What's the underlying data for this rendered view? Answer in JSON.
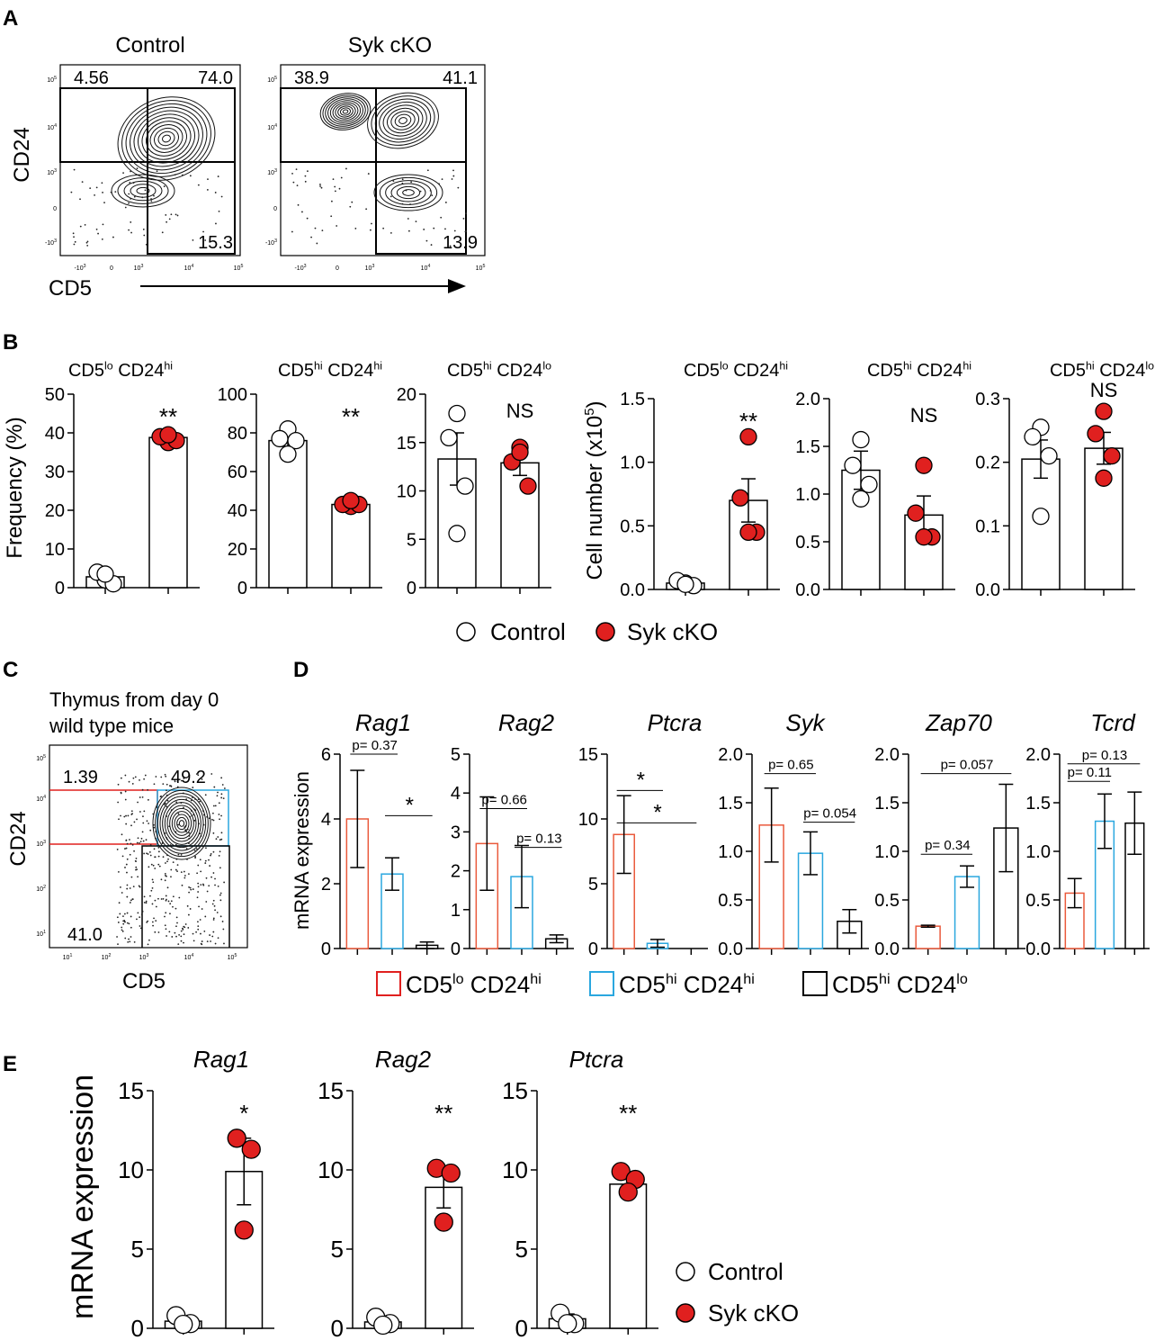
{
  "colors": {
    "red": "#e0201f",
    "blue": "#2aa7df",
    "orange": "#ea5a3c",
    "black": "#000000"
  },
  "panel_labels": [
    "A",
    "B",
    "C",
    "D",
    "E"
  ],
  "panel_a": {
    "xlabel": "CD5",
    "ylabel": "CD24",
    "plots": [
      {
        "title": "Control",
        "quadrants": {
          "ul": "4.56",
          "ur": "74.0",
          "lr": "15.3"
        }
      },
      {
        "title": "Syk cKO",
        "quadrants": {
          "ul": "38.9",
          "ur": "41.1",
          "lr": "13.9"
        }
      }
    ],
    "x_ticks": [
      "-10 3",
      "0",
      "10 3",
      "10 4",
      "10 5"
    ],
    "y_ticks": [
      "10 5",
      "10 4",
      "10 3",
      "0",
      "-10 3"
    ]
  },
  "panel_c": {
    "title_lines": [
      "Thymus from day 0",
      "wild type mice"
    ],
    "xlabel": "CD5",
    "ylabel": "CD24",
    "gates": {
      "a": "1.39",
      "b": "49.2",
      "c": "41.0"
    },
    "x_ticks": [
      "10 1",
      "10 2",
      "10 3",
      "10 4",
      "10 5"
    ],
    "y_ticks": [
      "10 5",
      "10 4",
      "10 3",
      "10 2",
      "10 1"
    ]
  },
  "legend_b": {
    "control": "Control",
    "cko": "Syk cKO"
  },
  "legend_d": [
    "CD5lo CD24hi",
    "CD5hi CD24hi",
    "CD5hi CD24lo"
  ],
  "legend_e": {
    "control": "Control",
    "cko": "Syk cKO"
  },
  "chart_data": [
    {
      "id": "B1",
      "type": "bar",
      "title": "CD5lo CD24hi",
      "ylabel": "Frequency (%)",
      "ylim": [
        0,
        50
      ],
      "yticks": [
        "0",
        "10",
        "20",
        "30",
        "40",
        "50"
      ],
      "categories": [
        "Control",
        "Syk cKO"
      ],
      "values": [
        2.8,
        38.8
      ],
      "errors": [
        0.8,
        0.7
      ],
      "points": [
        [
          2,
          4,
          1,
          3.5
        ],
        [
          37.5,
          39,
          38,
          39.5
        ]
      ],
      "sig": "**"
    },
    {
      "id": "B2",
      "type": "bar",
      "title": "CD5hi CD24hi",
      "ylim": [
        0,
        100
      ],
      "yticks": [
        "0",
        "20",
        "40",
        "60",
        "80",
        "100"
      ],
      "categories": [
        "Control",
        "Syk cKO"
      ],
      "values": [
        76,
        43
      ],
      "errors": [
        3,
        1
      ],
      "points": [
        [
          82,
          77,
          76,
          69
        ],
        [
          42,
          43,
          43,
          45
        ]
      ],
      "sig": "**"
    },
    {
      "id": "B3",
      "type": "bar",
      "title": "CD5hi CD24lo",
      "ylim": [
        0,
        20
      ],
      "yticks": [
        "0",
        "5",
        "10",
        "15",
        "20"
      ],
      "categories": [
        "Control",
        "Syk cKO"
      ],
      "values": [
        13.3,
        12.9
      ],
      "errors": [
        2.7,
        1.3
      ],
      "points": [
        [
          18,
          15.5,
          10.5,
          5.6
        ],
        [
          14.5,
          13,
          10.5,
          14
        ]
      ],
      "sig": "NS"
    },
    {
      "id": "B4",
      "type": "bar",
      "title": "CD5lo CD24hi",
      "ylabel": "Cell number (x105)",
      "ylim": [
        0,
        1.5
      ],
      "yticks": [
        "0.0",
        "0.5",
        "1.0",
        "1.5"
      ],
      "categories": [
        "Control",
        "Syk cKO"
      ],
      "values": [
        0.05,
        0.7
      ],
      "errors": [
        0.02,
        0.17
      ],
      "points": [
        [
          0.05,
          0.07,
          0.03,
          0.04
        ],
        [
          1.2,
          0.72,
          0.45,
          0.45
        ]
      ],
      "sig": "**"
    },
    {
      "id": "B5",
      "type": "bar",
      "title": "CD5hi CD24hi",
      "ylim": [
        0,
        2.0
      ],
      "yticks": [
        "0.0",
        "0.5",
        "1.0",
        "1.5",
        "2.0"
      ],
      "categories": [
        "Control",
        "Syk cKO"
      ],
      "values": [
        1.25,
        0.78
      ],
      "errors": [
        0.2,
        0.2
      ],
      "points": [
        [
          1.57,
          1.3,
          1.1,
          0.95
        ],
        [
          1.3,
          0.8,
          0.55,
          0.55
        ]
      ],
      "sig": "NS"
    },
    {
      "id": "B6",
      "type": "bar",
      "title": "CD5hi CD24lo",
      "ylim": [
        0,
        0.3
      ],
      "yticks": [
        "0.0",
        "0.1",
        "0.2",
        "0.3"
      ],
      "categories": [
        "Control",
        "Syk cKO"
      ],
      "values": [
        0.205,
        0.222
      ],
      "errors": [
        0.03,
        0.025
      ],
      "points": [
        [
          0.255,
          0.24,
          0.21,
          0.115
        ],
        [
          0.28,
          0.245,
          0.21,
          0.175
        ]
      ],
      "sig": "NS"
    },
    {
      "id": "D1",
      "type": "bar",
      "title": "Rag1",
      "ylabel": "mRNA expression",
      "ylim": [
        0,
        6
      ],
      "yticks": [
        "0",
        "2",
        "4",
        "6"
      ],
      "categories": [
        "CD5lo CD24hi",
        "CD5hi CD24hi",
        "CD5hi CD24lo"
      ],
      "values": [
        4.0,
        2.3,
        0.1
      ],
      "errors": [
        1.5,
        0.5,
        0.1
      ],
      "annotations": [
        {
          "text": "p= 0.37",
          "from": 0,
          "to": 1,
          "y": 6.0
        },
        {
          "text": "*",
          "from": 1,
          "to": 2,
          "y": 4.1
        }
      ]
    },
    {
      "id": "D2",
      "type": "bar",
      "title": "Rag2",
      "ylim": [
        0,
        5
      ],
      "yticks": [
        "0",
        "1",
        "2",
        "3",
        "4",
        "5"
      ],
      "categories": [
        "CD5lo CD24hi",
        "CD5hi CD24hi",
        "CD5hi CD24lo"
      ],
      "values": [
        2.7,
        1.85,
        0.25
      ],
      "errors": [
        1.2,
        0.8,
        0.1
      ],
      "annotations": [
        {
          "text": "p= 0.66",
          "from": 0,
          "to": 1,
          "y": 3.6
        },
        {
          "text": "p= 0.13",
          "from": 1,
          "to": 2,
          "y": 2.6
        }
      ]
    },
    {
      "id": "D3",
      "type": "bar",
      "title": "Ptcra",
      "ylim": [
        0,
        15
      ],
      "yticks": [
        "0",
        "5",
        "10",
        "15"
      ],
      "categories": [
        "CD5lo CD24hi",
        "CD5hi CD24hi",
        "CD5hi CD24lo"
      ],
      "values": [
        8.8,
        0.4,
        0
      ],
      "errors": [
        3.0,
        0.3,
        0
      ],
      "annotations": [
        {
          "text": "*",
          "from": 0,
          "to": 1,
          "y": 12.2
        },
        {
          "text": "*",
          "from": 0,
          "to": 2,
          "y": 9.7
        }
      ]
    },
    {
      "id": "D4",
      "type": "bar",
      "title": "Syk",
      "ylim": [
        0,
        2.0
      ],
      "yticks": [
        "0.0",
        "0.5",
        "1.0",
        "1.5",
        "2.0"
      ],
      "categories": [
        "CD5lo CD24hi",
        "CD5hi CD24hi",
        "CD5hi CD24lo"
      ],
      "values": [
        1.27,
        0.98,
        0.28
      ],
      "errors": [
        0.38,
        0.22,
        0.12
      ],
      "annotations": [
        {
          "text": "p= 0.65",
          "from": 0,
          "to": 1,
          "y": 1.8
        },
        {
          "text": "p= 0.054",
          "from": 1,
          "to": 2,
          "y": 1.3
        }
      ]
    },
    {
      "id": "D5",
      "type": "bar",
      "title": "Zap70",
      "ylim": [
        0,
        2.0
      ],
      "yticks": [
        "0.0",
        "0.5",
        "1.0",
        "1.5",
        "2.0"
      ],
      "categories": [
        "CD5lo CD24hi",
        "CD5hi CD24hi",
        "CD5hi CD24lo"
      ],
      "values": [
        0.23,
        0.74,
        1.24
      ],
      "errors": [
        0.01,
        0.11,
        0.45
      ],
      "annotations": [
        {
          "text": "p= 0.057",
          "from": 0,
          "to": 2,
          "y": 1.8
        },
        {
          "text": "p= 0.34",
          "from": 0,
          "to": 1,
          "y": 0.97
        }
      ]
    },
    {
      "id": "D6",
      "type": "bar",
      "title": "Tcrd",
      "ylim": [
        0,
        2.0
      ],
      "yticks": [
        "0.0",
        "0.5",
        "1.0",
        "1.5",
        "2.0"
      ],
      "categories": [
        "CD5lo CD24hi",
        "CD5hi CD24hi",
        "CD5hi CD24lo"
      ],
      "values": [
        0.57,
        1.31,
        1.29
      ],
      "errors": [
        0.15,
        0.28,
        0.32
      ],
      "annotations": [
        {
          "text": "p= 0.13",
          "from": 0,
          "to": 2,
          "y": 1.9
        },
        {
          "text": "p= 0.11",
          "from": 0,
          "to": 1,
          "y": 1.72
        }
      ]
    },
    {
      "id": "E1",
      "type": "bar",
      "title": "Rag1",
      "ylabel": "mRNA expression",
      "ylim": [
        0,
        15
      ],
      "yticks": [
        "0",
        "5",
        "10",
        "15"
      ],
      "categories": [
        "Control",
        "Syk cKO"
      ],
      "values": [
        0.45,
        9.9
      ],
      "errors": [
        0.3,
        2.1
      ],
      "points": [
        [
          0.8,
          0.3,
          0.25
        ],
        [
          12,
          11.3,
          6.2
        ]
      ],
      "sig": "*"
    },
    {
      "id": "E2",
      "type": "bar",
      "title": "Rag2",
      "ylim": [
        0,
        15
      ],
      "yticks": [
        "0",
        "5",
        "10",
        "15"
      ],
      "categories": [
        "Control",
        "Syk cKO"
      ],
      "values": [
        0.4,
        8.9
      ],
      "errors": [
        0.2,
        1.3
      ],
      "points": [
        [
          0.7,
          0.3,
          0.2
        ],
        [
          10.1,
          9.8,
          6.7
        ]
      ],
      "sig": "**"
    },
    {
      "id": "E3",
      "type": "bar",
      "title": "Ptcra",
      "ylim": [
        0,
        15
      ],
      "yticks": [
        "0",
        "5",
        "10",
        "15"
      ],
      "categories": [
        "Control",
        "Syk cKO"
      ],
      "values": [
        0.6,
        9.1
      ],
      "errors": [
        0.3,
        0.5
      ],
      "points": [
        [
          0.95,
          0.3,
          0.3
        ],
        [
          9.9,
          9.4,
          8.6
        ]
      ],
      "sig": "**"
    }
  ]
}
